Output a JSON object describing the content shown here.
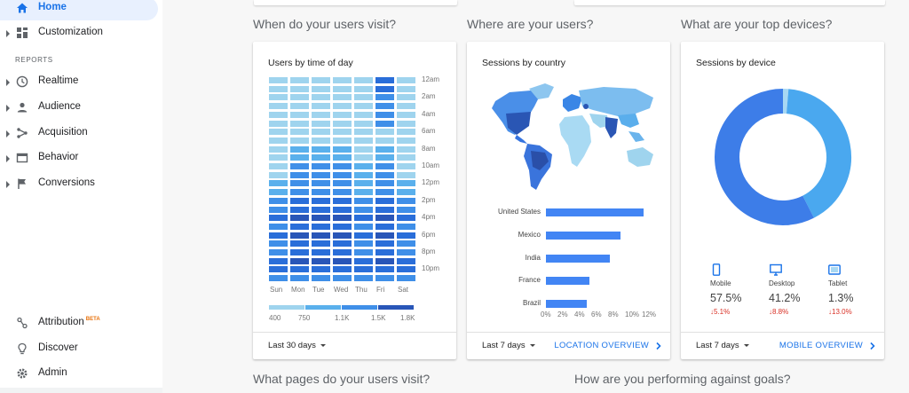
{
  "sidebar": {
    "home": "Home",
    "customization": "Customization",
    "reports_section": "REPORTS",
    "items": [
      {
        "label": "Realtime"
      },
      {
        "label": "Audience"
      },
      {
        "label": "Acquisition"
      },
      {
        "label": "Behavior"
      },
      {
        "label": "Conversions"
      }
    ],
    "attribution": "Attribution",
    "attribution_badge": "BETA",
    "discover": "Discover",
    "admin": "Admin"
  },
  "sections": {
    "visit_time": "When do your users visit?",
    "location": "Where are your users?",
    "devices": "What are your top devices?",
    "pages": "What pages do your users visit?",
    "goals": "How are you performing against goals?"
  },
  "time_card": {
    "title": "Users by time of day",
    "days": [
      "Sun",
      "Mon",
      "Tue",
      "Wed",
      "Thu",
      "Fri",
      "Sat"
    ],
    "hours": [
      "12am",
      "2am",
      "4am",
      "6am",
      "8am",
      "10am",
      "12pm",
      "2pm",
      "4pm",
      "6pm",
      "8pm",
      "10pm"
    ],
    "legend": [
      "400",
      "750",
      "1.1K",
      "1.5K",
      "1.8K"
    ],
    "date_range": "Last 30 days",
    "colors": [
      "#9fd4ee",
      "#5ab0ec",
      "#3f8fe8",
      "#2a6ed9",
      "#2956b8"
    ]
  },
  "country_card": {
    "title": "Sessions by country",
    "date_range": "Last 7 days",
    "overview_link": "LOCATION OVERVIEW",
    "chart_data": {
      "type": "bar",
      "categories": [
        "United States",
        "Mexico",
        "India",
        "France",
        "Brazil"
      ],
      "values": [
        11.6,
        8.8,
        7.6,
        5.2,
        4.8
      ],
      "xticks": [
        "0%",
        "2%",
        "4%",
        "6%",
        "8%",
        "10%",
        "12%"
      ],
      "xlim": [
        0,
        12
      ]
    }
  },
  "device_card": {
    "title": "Sessions by device",
    "date_range": "Last 7 days",
    "overview_link": "MOBILE OVERVIEW",
    "chart_data": {
      "type": "pie",
      "categories": [
        "Mobile",
        "Desktop",
        "Tablet"
      ],
      "values": [
        57.5,
        41.2,
        1.3
      ],
      "colors": [
        "#3d7de8",
        "#4aa8ef",
        "#a8d8f3"
      ]
    },
    "devices": [
      {
        "name": "Mobile",
        "pct": "57.5%",
        "change": "↓5.1%"
      },
      {
        "name": "Desktop",
        "pct": "41.2%",
        "change": "↓8.8%"
      },
      {
        "name": "Tablet",
        "pct": "1.3%",
        "change": "↓13.0%"
      }
    ]
  }
}
